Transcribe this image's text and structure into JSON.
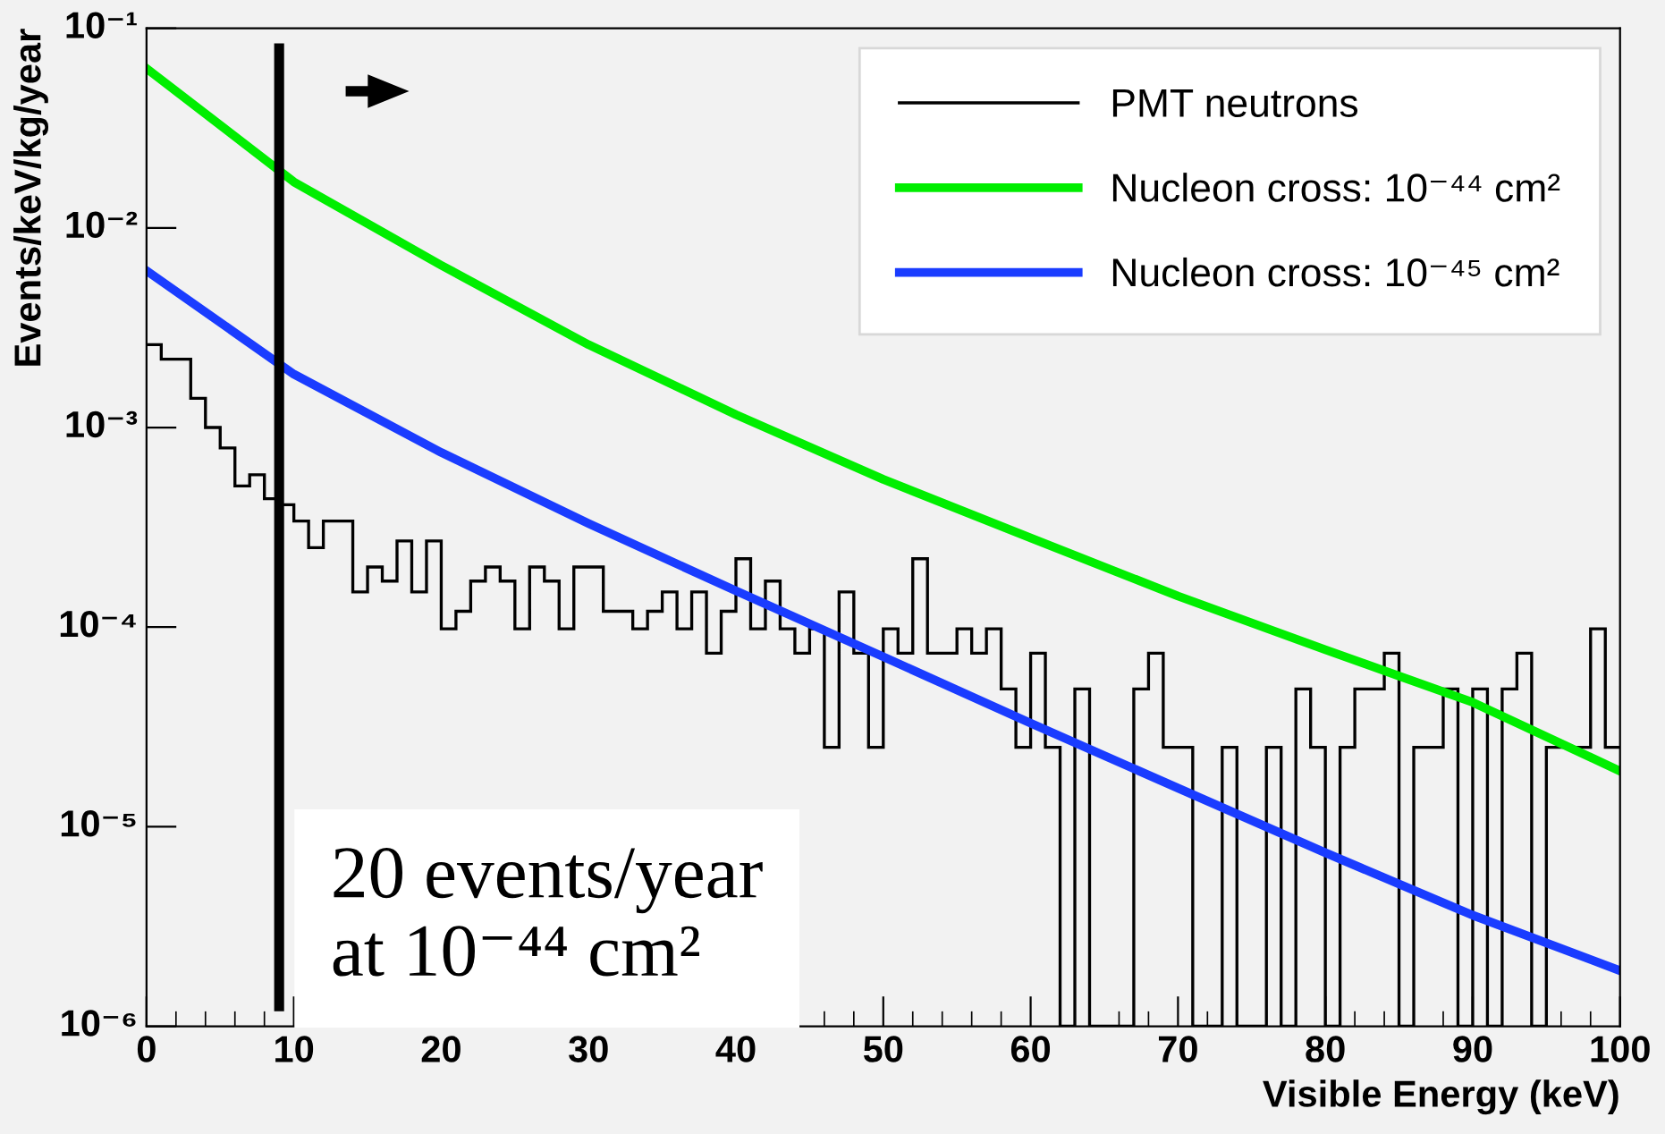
{
  "chart_data": {
    "type": "line",
    "xlabel": "Visible Energy (keV)",
    "ylabel": "Events/keV/kg/year",
    "xlim": [
      0,
      100
    ],
    "xticks": [
      0,
      10,
      20,
      30,
      40,
      50,
      60,
      70,
      80,
      90,
      100
    ],
    "ylim": [
      1e-06,
      0.1
    ],
    "log": "y",
    "yticks": [
      {
        "value": 1e-06,
        "label": "10⁻⁶"
      },
      {
        "value": 1e-05,
        "label": "10⁻⁵"
      },
      {
        "value": 0.0001,
        "label": "10⁻⁴"
      },
      {
        "value": 0.001,
        "label": "10⁻³"
      },
      {
        "value": 0.01,
        "label": "10⁻²"
      },
      {
        "value": 0.1,
        "label": "10⁻¹"
      }
    ],
    "grid": false,
    "legend": "top right",
    "marker": "none",
    "line_style": "solid",
    "series": [
      {
        "name": "PMT neutrons",
        "type": "histogram",
        "color": "#000000",
        "bins": [
          0,
          1,
          2,
          3,
          4,
          5,
          6,
          7,
          8,
          9,
          10,
          11,
          12,
          13,
          14,
          15,
          16,
          17,
          18,
          19,
          20,
          21,
          22,
          23,
          24,
          25,
          26,
          27,
          28,
          29,
          30,
          31,
          32,
          33,
          34,
          35,
          36,
          37,
          38,
          39,
          40,
          41,
          42,
          43,
          44,
          45,
          46,
          47,
          48,
          49,
          50,
          51,
          52,
          53,
          54,
          55,
          56,
          57,
          58,
          59,
          60,
          61,
          62,
          63,
          64,
          65,
          66,
          67,
          68,
          69,
          70,
          71,
          72,
          73,
          74,
          75,
          76,
          77,
          78,
          79,
          80,
          81,
          82,
          83,
          84,
          85,
          86,
          87,
          88,
          89,
          90,
          91,
          92,
          93,
          94,
          95,
          96,
          97,
          98,
          99,
          100
        ],
        "values": [
          0.0026,
          0.0022,
          0.0022,
          0.0014,
          0.001,
          0.00079,
          0.00051,
          0.00058,
          0.00044,
          0.00041,
          0.00034,
          0.00025,
          0.00034,
          0.00034,
          0.00015,
          0.0002,
          0.00017,
          0.00027,
          0.00015,
          0.00027,
          9.8e-05,
          0.00012,
          0.00017,
          0.0002,
          0.00017,
          9.8e-05,
          0.0002,
          0.00017,
          9.8e-05,
          0.0002,
          0.0002,
          0.00012,
          0.00012,
          9.8e-05,
          0.00012,
          0.00015,
          9.8e-05,
          0.00015,
          7.4e-05,
          0.00012,
          0.00022,
          9.8e-05,
          0.00017,
          9.8e-05,
          7.4e-05,
          9.8e-05,
          2.5e-05,
          0.00015,
          7.4e-05,
          2.5e-05,
          9.8e-05,
          7.4e-05,
          0.00022,
          7.4e-05,
          7.4e-05,
          9.8e-05,
          7.4e-05,
          9.8e-05,
          4.9e-05,
          2.5e-05,
          7.4e-05,
          2.5e-05,
          null,
          4.9e-05,
          null,
          null,
          null,
          4.9e-05,
          7.4e-05,
          2.5e-05,
          2.5e-05,
          null,
          null,
          2.5e-05,
          null,
          null,
          2.5e-05,
          null,
          4.9e-05,
          2.5e-05,
          null,
          2.5e-05,
          4.9e-05,
          4.9e-05,
          7.4e-05,
          null,
          2.5e-05,
          2.5e-05,
          4.9e-05,
          null,
          4.9e-05,
          null,
          4.9e-05,
          7.4e-05,
          null,
          2.5e-05,
          2.5e-05,
          2.5e-05,
          9.8e-05,
          2.5e-05
        ]
      },
      {
        "name": "Nucleon cross: 10⁻⁴⁴ cm²",
        "color": "#00ee00",
        "x": [
          0,
          10,
          20,
          30,
          40,
          50,
          60,
          70,
          80,
          90,
          100
        ],
        "values": [
          0.063,
          0.017,
          0.0065,
          0.0026,
          0.00116,
          0.00055,
          0.00028,
          0.000143,
          7.7e-05,
          4.2e-05,
          1.9e-05
        ]
      },
      {
        "name": "Nucleon cross: 10⁻⁴⁵ cm²",
        "color": "#1a3cff",
        "x": [
          0,
          10,
          20,
          30,
          40,
          50,
          60,
          70,
          80,
          90,
          100
        ],
        "values": [
          0.0061,
          0.00185,
          0.00075,
          0.00033,
          0.000152,
          7.1e-05,
          3.3e-05,
          1.56e-05,
          7.4e-06,
          3.6e-06,
          1.9e-06
        ]
      }
    ],
    "ref_lines": [
      {
        "axis": "x",
        "value": 9,
        "color": "#000000"
      }
    ],
    "annotations": [
      "20 events/year\nat 10⁻⁴⁴ cm²"
    ]
  }
}
